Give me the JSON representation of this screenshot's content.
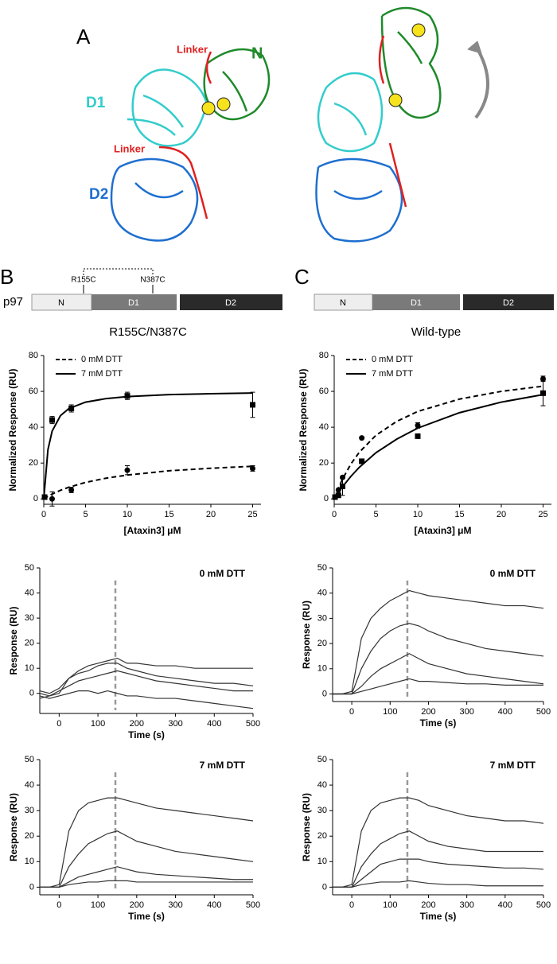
{
  "panel_labels": [
    "A",
    "B",
    "C"
  ],
  "structure": {
    "labels": [
      "Linker",
      "N",
      "D1",
      "Linker",
      "D2"
    ]
  },
  "domain_maps": [
    {
      "protein": "p97",
      "domains": [
        "N",
        "D1",
        "D2"
      ],
      "mutations": [
        "R155C",
        "N387C"
      ],
      "caption": "R155C/N387C"
    },
    {
      "domains": [
        "N",
        "D1",
        "D2"
      ],
      "caption": "Wild-type"
    }
  ],
  "chart_data": [
    {
      "type": "scatter",
      "x_label": "[Ataxin3] μM",
      "y_label": "Normalized Response (RU)",
      "xlim": [
        0,
        26
      ],
      "xticks": [
        0,
        5,
        10,
        15,
        20,
        25
      ],
      "ylim": [
        -3,
        80
      ],
      "yticks": [
        0,
        20,
        40,
        60,
        80
      ],
      "legend": "upper left",
      "series": [
        {
          "name": "0 mM DTT",
          "color": "#000000",
          "marker": "circle",
          "dash": true,
          "x": [
            0.1,
            1,
            3.3,
            10,
            25
          ],
          "values": [
            1,
            0,
            5,
            16,
            17
          ],
          "errors": [
            0,
            4,
            1.5,
            2.5,
            1.5
          ],
          "fit_x": [
            0,
            0.5,
            1,
            2,
            3,
            5,
            7.5,
            10,
            15,
            20,
            25
          ],
          "fit_values": [
            0,
            1.4,
            2.7,
            4.8,
            6.5,
            9.2,
            11.6,
            13.3,
            15.7,
            17.1,
            18.2
          ]
        },
        {
          "name": "7 mM DTT",
          "color": "#000000",
          "marker": "square",
          "dash": false,
          "x": [
            0.1,
            1,
            3.3,
            10,
            25
          ],
          "values": [
            1,
            44,
            50.5,
            57.5,
            52.5
          ],
          "errors": [
            0,
            2,
            2,
            2,
            7
          ],
          "fit_x": [
            0,
            0.5,
            1,
            2,
            3,
            5,
            7.5,
            10,
            15,
            20,
            25
          ],
          "fit_values": [
            0,
            27.5,
            37.8,
            46.5,
            50.4,
            54,
            56,
            57.1,
            58.2,
            58.7,
            59.1
          ]
        }
      ]
    },
    {
      "type": "scatter",
      "x_label": "[Ataxin3] μM",
      "y_label": "Normalized Response (RU)",
      "xlim": [
        0,
        26
      ],
      "xticks": [
        0,
        5,
        10,
        15,
        20,
        25
      ],
      "ylim": [
        -3,
        80
      ],
      "yticks": [
        0,
        20,
        40,
        60,
        80
      ],
      "legend": "upper left",
      "series": [
        {
          "name": "0 mM DTT",
          "color": "#000000",
          "marker": "circle",
          "dash": true,
          "x": [
            0.1,
            0.5,
            1,
            3.3,
            10,
            25
          ],
          "values": [
            1,
            5,
            12,
            34,
            41,
            67
          ],
          "errors": [
            0,
            0,
            0,
            0,
            1.5,
            1.5
          ],
          "fit_x": [
            0,
            0.5,
            1,
            2,
            3,
            5,
            7.5,
            10,
            15,
            20,
            25
          ],
          "fit_values": [
            0,
            6,
            11.1,
            19.5,
            26,
            35.5,
            43.3,
            48.8,
            55.7,
            60,
            62.9
          ]
        },
        {
          "name": "7 mM DTT",
          "color": "#000000",
          "marker": "square",
          "dash": false,
          "x": [
            0.1,
            0.5,
            1,
            3.3,
            10,
            25
          ],
          "values": [
            1,
            2,
            7,
            21,
            35,
            59
          ],
          "errors": [
            0,
            0,
            5,
            0,
            0,
            7
          ],
          "fit_x": [
            0,
            0.5,
            1,
            2,
            3,
            5,
            7.5,
            10,
            15,
            20,
            25
          ],
          "fit_values": [
            0,
            3.5,
            6.8,
            12.6,
            17.6,
            25.8,
            33.4,
            39.5,
            48.1,
            54,
            58.2
          ]
        }
      ]
    },
    {
      "type": "line",
      "annotation": "0 mM DTT",
      "x_label": "Time (s)",
      "y_label": "Response (RU)",
      "xlim": [
        -50,
        500
      ],
      "xticks": [
        0,
        100,
        200,
        300,
        400,
        500
      ],
      "ylim": [
        -8,
        50
      ],
      "yticks": [
        0,
        10,
        20,
        30,
        40,
        50
      ],
      "marker_x": 145,
      "x": [
        -50,
        -25,
        0,
        25,
        50,
        75,
        100,
        125,
        150,
        175,
        200,
        250,
        300,
        350,
        400,
        450,
        500
      ],
      "series": [
        {
          "color": "#333333",
          "values": [
            1,
            0,
            2,
            6,
            9,
            11,
            12,
            13,
            14,
            12,
            12,
            11,
            11,
            10,
            10,
            10,
            10
          ]
        },
        {
          "color": "#333333",
          "values": [
            -2,
            -1,
            0,
            6,
            8,
            9,
            11,
            12,
            12,
            10,
            9,
            7,
            6,
            5,
            4,
            4,
            3
          ]
        },
        {
          "color": "#333333",
          "values": [
            0,
            -1,
            1,
            3,
            5,
            6,
            7,
            8,
            9,
            8,
            7,
            5,
            4,
            3,
            2,
            1,
            1
          ]
        },
        {
          "color": "#333333",
          "values": [
            -1,
            -2,
            -1,
            0,
            1,
            1,
            0,
            1,
            0,
            -1,
            -1,
            -2,
            -2,
            -3,
            -4,
            -5,
            -6
          ]
        }
      ]
    },
    {
      "type": "line",
      "annotation": "0 mM DTT",
      "x_label": "Time (s)",
      "y_label": "Response (RU)",
      "xlim": [
        -50,
        500
      ],
      "xticks": [
        0,
        100,
        200,
        300,
        400,
        500
      ],
      "ylim": [
        -3,
        50
      ],
      "yticks": [
        0,
        10,
        20,
        30,
        40,
        50
      ],
      "marker_x": 145,
      "x": [
        -50,
        -25,
        0,
        25,
        50,
        75,
        100,
        125,
        150,
        175,
        200,
        250,
        300,
        350,
        400,
        450,
        500
      ],
      "series": [
        {
          "color": "#333333",
          "values": [
            0,
            0,
            1,
            22,
            30,
            34,
            37,
            39,
            41,
            40,
            39,
            38,
            37,
            36,
            35,
            35,
            34
          ]
        },
        {
          "color": "#333333",
          "values": [
            0,
            0,
            0,
            10,
            17,
            22,
            25,
            27,
            28,
            27,
            25,
            22,
            20,
            18,
            17,
            16,
            15
          ]
        },
        {
          "color": "#333333",
          "values": [
            0,
            0,
            0,
            3,
            7,
            10,
            12,
            14,
            16,
            14,
            12,
            10,
            8,
            7,
            6,
            5,
            4
          ]
        },
        {
          "color": "#333333",
          "values": [
            0,
            0,
            0,
            1,
            2,
            3,
            4,
            5,
            6,
            5,
            5,
            4.5,
            4,
            4,
            3.5,
            3.5,
            3.5
          ]
        }
      ]
    },
    {
      "type": "line",
      "annotation": "7 mM DTT",
      "x_label": "Time (s)",
      "y_label": "Response (RU)",
      "xlim": [
        -50,
        500
      ],
      "xticks": [
        0,
        100,
        200,
        300,
        400,
        500
      ],
      "ylim": [
        -3,
        50
      ],
      "yticks": [
        0,
        10,
        20,
        30,
        40,
        50
      ],
      "marker_x": 145,
      "x": [
        -50,
        -25,
        0,
        25,
        50,
        75,
        100,
        125,
        150,
        175,
        200,
        250,
        300,
        350,
        400,
        450,
        500
      ],
      "series": [
        {
          "color": "#333333",
          "values": [
            0,
            0,
            1,
            22,
            30,
            33,
            34,
            35,
            35,
            34,
            33,
            31,
            30,
            29,
            28,
            27,
            26
          ]
        },
        {
          "color": "#333333",
          "values": [
            0,
            0,
            0,
            8,
            13,
            17,
            19,
            21,
            22,
            20,
            18,
            16,
            14,
            13,
            12,
            11,
            10
          ]
        },
        {
          "color": "#333333",
          "values": [
            0,
            0,
            0,
            2,
            4,
            5,
            6,
            7,
            8,
            7,
            6,
            5,
            4.5,
            4,
            3.5,
            3,
            3
          ]
        },
        {
          "color": "#333333",
          "values": [
            0,
            0,
            0,
            1,
            1.5,
            2,
            2,
            2.5,
            2.5,
            2.5,
            2,
            2,
            2,
            2,
            2,
            2,
            2
          ]
        }
      ]
    },
    {
      "type": "line",
      "annotation": "7 mM DTT",
      "x_label": "Time (s)",
      "y_label": "Response (RU)",
      "xlim": [
        -50,
        500
      ],
      "xticks": [
        0,
        100,
        200,
        300,
        400,
        500
      ],
      "ylim": [
        -3,
        50
      ],
      "yticks": [
        0,
        10,
        20,
        30,
        40,
        50
      ],
      "marker_x": 145,
      "x": [
        -50,
        -25,
        0,
        25,
        50,
        75,
        100,
        125,
        150,
        175,
        200,
        250,
        300,
        350,
        400,
        450,
        500
      ],
      "series": [
        {
          "color": "#333333",
          "values": [
            0,
            0,
            1,
            22,
            30,
            33,
            34,
            35,
            35,
            34,
            32,
            30,
            28,
            27,
            26,
            26,
            25
          ]
        },
        {
          "color": "#333333",
          "values": [
            0,
            0,
            0,
            8,
            13,
            17,
            19,
            21,
            22,
            20,
            18,
            16,
            15,
            14,
            14,
            14,
            14
          ]
        },
        {
          "color": "#333333",
          "values": [
            0,
            0,
            0,
            3,
            6,
            9,
            10,
            11,
            11,
            11,
            10,
            9,
            8.5,
            8,
            7.5,
            7.5,
            7
          ]
        },
        {
          "color": "#333333",
          "values": [
            0,
            0,
            0,
            1,
            1.5,
            2,
            2,
            2,
            2.5,
            2,
            1.5,
            1,
            1,
            0.5,
            0.5,
            0.5,
            0.5
          ]
        }
      ]
    }
  ]
}
